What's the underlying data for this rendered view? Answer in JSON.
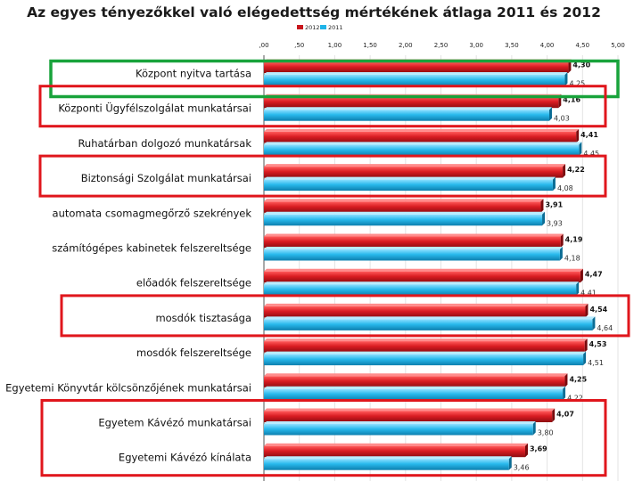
{
  "chart_data": {
    "type": "bar",
    "orientation": "horizontal",
    "title": "Az egyes tényezőkkel való elégedettség mértékének átlaga 2011 és 2012",
    "x_ticks": [
      ",00",
      ",50",
      "1,00",
      "1,50",
      "2,00",
      "2,50",
      "3,00",
      "3,50",
      "4,00",
      "4,50",
      "5,00"
    ],
    "xlim": [
      0,
      5
    ],
    "grid": true,
    "legend_position": "top-left",
    "categories": [
      "Központ nyitva tartása",
      "Központi Ügyfélszolgálat munkatársai",
      "Ruhatárban dolgozó munkatársak",
      "Biztonsági Szolgálat munkatársai",
      "automata csomagmegőrző szekrények",
      "számítógépes kabinetek felszereltsége",
      "előadók felszereltsége",
      "mosdók tisztasága",
      "mosdók felszereltsége",
      "Egyetemi Könyvtár kölcsönzőjének munkatársai",
      "Egyetem Kávézó munkatársai",
      "Egyetemi Kávézó kínálata"
    ],
    "series": [
      {
        "name": "2012",
        "color": "#c8161d",
        "values": [
          4.3,
          4.16,
          4.41,
          4.22,
          3.91,
          4.19,
          4.47,
          4.54,
          4.53,
          4.25,
          4.07,
          3.69
        ],
        "labels": [
          "4,30",
          "4,16",
          "4,41",
          "4,22",
          "3,91",
          "4,19",
          "4,47",
          "4,54",
          "4,53",
          "4,25",
          "4,07",
          "3,69"
        ]
      },
      {
        "name": "2011",
        "color": "#1fb4e8",
        "values": [
          4.25,
          4.03,
          4.45,
          4.08,
          3.93,
          4.18,
          4.41,
          4.64,
          4.51,
          4.22,
          3.8,
          3.46
        ],
        "labels": [
          "4,25",
          "4,03",
          "4,45",
          "4,08",
          "3,93",
          "4,18",
          "4,41",
          "4,64",
          "4,51",
          "4,22",
          "3,80",
          "3,46"
        ]
      }
    ],
    "annotations": {
      "green_box_categories": [
        0
      ],
      "red_box_groups": [
        [
          1
        ],
        [
          3
        ],
        [
          7
        ],
        [
          10,
          11
        ]
      ]
    }
  }
}
